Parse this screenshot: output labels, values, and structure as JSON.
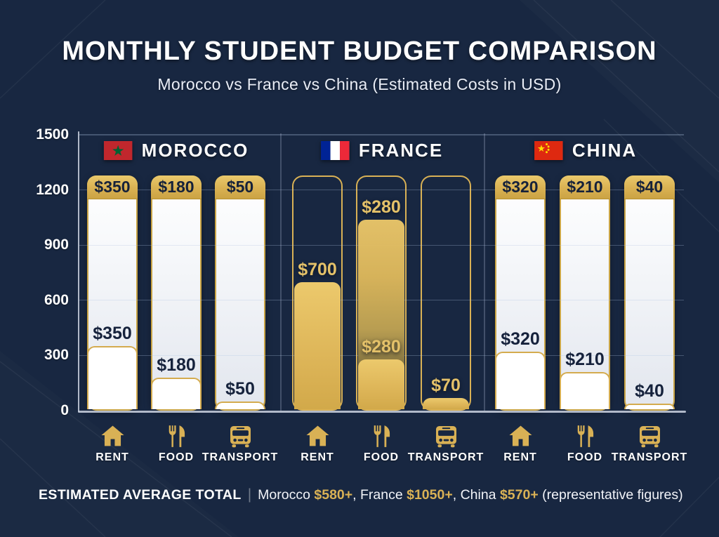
{
  "page": {
    "title": "MONTHLY STUDENT BUDGET COMPARISON",
    "subtitle": "Morocco vs France vs China (Estimated Costs in USD)"
  },
  "footer": {
    "heading": "ESTIMATED AVERAGE TOTAL",
    "divider": "|",
    "segments": [
      {
        "text": "Morocco ",
        "gold": false
      },
      {
        "text": "$580+",
        "gold": true
      },
      {
        "text": ", France ",
        "gold": false
      },
      {
        "text": "$1050+",
        "gold": true
      },
      {
        "text": ", China ",
        "gold": false
      },
      {
        "text": "$570+",
        "gold": true
      },
      {
        "text": " (representative figures)",
        "gold": false
      }
    ]
  },
  "colors": {
    "background": "#182741",
    "gold": "#d9b155",
    "gold_bright": "#e8c467",
    "gold_dark": "#c29b3f",
    "navy_text": "#15213a",
    "axis_line": "#ccd4e2",
    "morocco_flag_red": "#c1272d",
    "morocco_flag_green": "#006233",
    "france_flag_blue": "#002395",
    "france_flag_red": "#ed2939",
    "china_flag_red": "#de2910",
    "china_flag_yellow": "#ffde00"
  },
  "chart_data": {
    "type": "bar",
    "title": "MONTHLY STUDENT BUDGET COMPARISON",
    "subtitle": "Morocco vs France vs China (Estimated Costs in USD)",
    "categories": [
      "RENT",
      "FOOD",
      "TRANSPORT"
    ],
    "category_icons": [
      "house-icon",
      "utensils-icon",
      "bus-icon"
    ],
    "ylim": [
      0,
      1500
    ],
    "yticks": [
      0,
      300,
      600,
      900,
      1200,
      1500
    ],
    "grid": true,
    "legend_position": "group-headers-above-bars",
    "track_top_value": 1280,
    "series": [
      {
        "name": "MOROCCO",
        "flag": "morocco",
        "style": "white-track-gold-cap",
        "values": [
          350,
          180,
          50
        ],
        "labels": [
          "$350",
          "$180",
          "$50"
        ],
        "cap_labels": [
          "$350",
          "$180",
          "$50"
        ]
      },
      {
        "name": "FRANCE",
        "flag": "france",
        "style": "gold-fill-outline-track",
        "values": [
          700,
          280,
          70
        ],
        "labels": [
          "$700",
          "$280",
          "$70"
        ],
        "ghost_fill": {
          "category_index": 1,
          "top_value": 1040,
          "label": "$280"
        }
      },
      {
        "name": "CHINA",
        "flag": "china",
        "style": "white-track-gold-cap",
        "values": [
          320,
          210,
          40
        ],
        "labels": [
          "$320",
          "$210",
          "$40"
        ],
        "cap_labels": [
          "$320",
          "$210",
          "$40"
        ]
      }
    ],
    "estimated_totals": [
      {
        "country": "Morocco",
        "amount": "$580+"
      },
      {
        "country": "France",
        "amount": "$1050+"
      },
      {
        "country": "China",
        "amount": "$570+"
      }
    ]
  }
}
